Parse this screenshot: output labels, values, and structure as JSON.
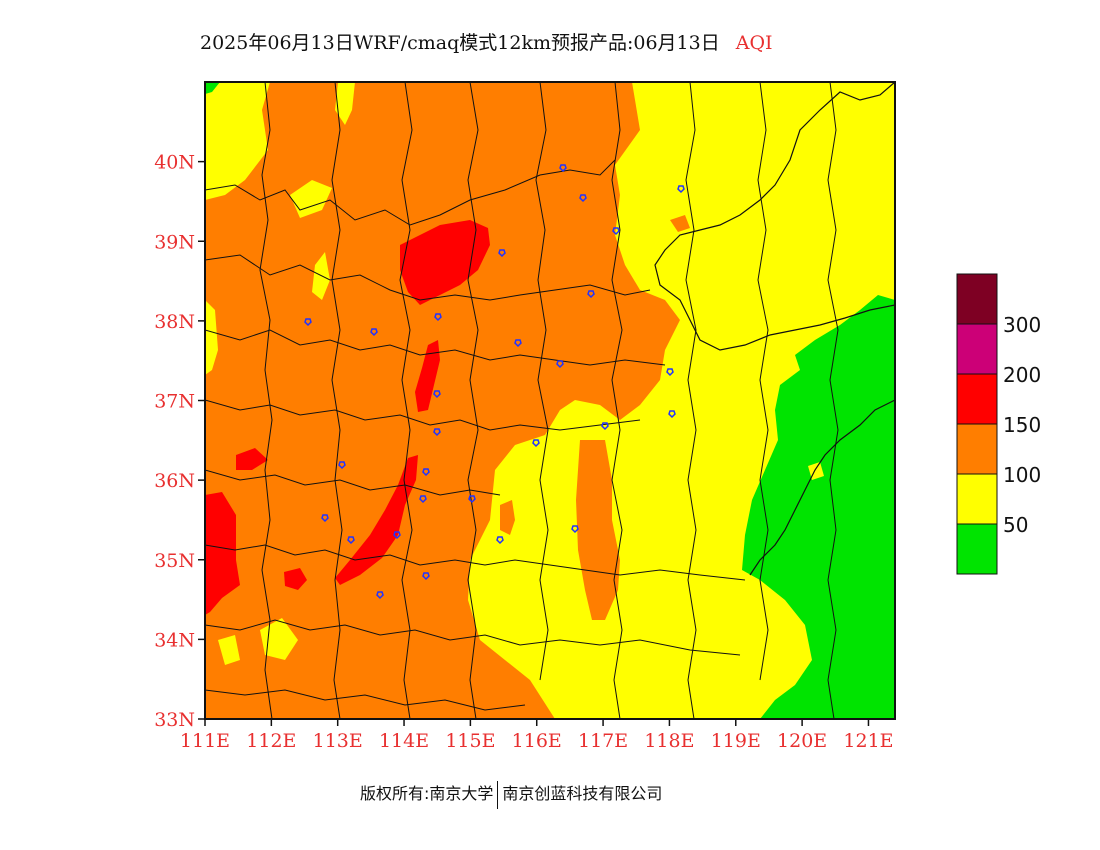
{
  "title": {
    "main": "2025年06月13日WRF/cmaq模式12km预报产品:06月13日",
    "variable": "AQI"
  },
  "map": {
    "lat_labels": [
      "40N",
      "39N",
      "38N",
      "37N",
      "36N",
      "35N",
      "34N",
      "33N"
    ],
    "lon_labels": [
      "111E",
      "112E",
      "113E",
      "114E",
      "115E",
      "116E",
      "117E",
      "118E",
      "119E",
      "120E",
      "121E"
    ],
    "lon_range": [
      111,
      121.4
    ],
    "lat_range": [
      33,
      41
    ],
    "layer_colors": {
      "good": "#00e400",
      "moderate": "#ffff00",
      "usg": "#ff7e00",
      "unhealthy": "#ff0000"
    },
    "city_marker_icon": "city-marker-icon"
  },
  "legend": {
    "colors": [
      "#7e0023",
      "#cc0077",
      "#ff0000",
      "#ff7e00",
      "#ffff00",
      "#00e400"
    ],
    "labels": [
      "300",
      "200",
      "150",
      "100",
      "50"
    ]
  },
  "footer": {
    "left": "版权所有:南京大学",
    "right": "南京创蓝科技有限公司"
  }
}
